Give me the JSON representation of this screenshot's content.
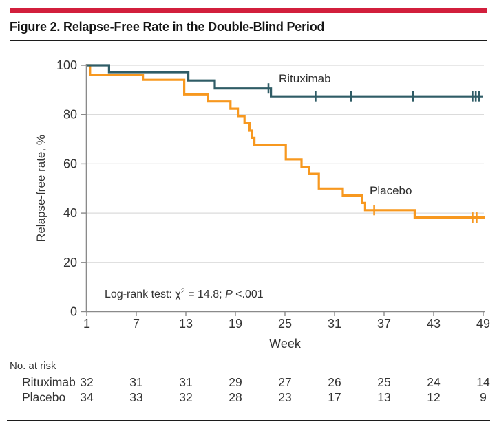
{
  "figure": {
    "title": "Figure 2. Relapse-Free Rate in the Double-Blind Period",
    "accent_color": "#D21F3C"
  },
  "chart_data": {
    "type": "line",
    "subtype": "kaplan-meier-step",
    "title": "",
    "xlabel": "Week",
    "ylabel": "Relapse-free rate, %",
    "xlim": [
      1,
      49
    ],
    "ylim": [
      0,
      100
    ],
    "x_ticks": [
      1,
      7,
      13,
      19,
      25,
      31,
      37,
      43,
      49
    ],
    "y_ticks": [
      0,
      20,
      40,
      60,
      80,
      100
    ],
    "grid": "horizontal-only",
    "legend_position": "inline-curve-labels",
    "annotation": {
      "prefix": "Log-rank test: χ",
      "sup": "2",
      "equals": " = 14.8; ",
      "p_label": "P",
      "p_value": " <.001"
    },
    "series": [
      {
        "name": "Placebo",
        "color": "#F7981F",
        "step_points": [
          [
            1,
            100
          ],
          [
            1.4,
            96.2
          ],
          [
            7.8,
            94.1
          ],
          [
            12.8,
            88.2
          ],
          [
            15.7,
            85.3
          ],
          [
            18.4,
            82.4
          ],
          [
            19.3,
            79.4
          ],
          [
            20.1,
            76.5
          ],
          [
            20.7,
            73.5
          ],
          [
            21.0,
            70.6
          ],
          [
            21.3,
            67.6
          ],
          [
            25.1,
            61.8
          ],
          [
            27.0,
            58.8
          ],
          [
            27.9,
            55.9
          ],
          [
            29.1,
            50.0
          ],
          [
            32.0,
            47.1
          ],
          [
            34.3,
            44.1
          ],
          [
            34.7,
            41.2
          ],
          [
            40.7,
            38.2
          ],
          [
            49.2,
            38.2
          ]
        ],
        "censor_marks": [
          [
            35.8,
            41.2
          ],
          [
            47.7,
            38.2
          ],
          [
            48.2,
            38.2
          ]
        ]
      },
      {
        "name": "Rituximab",
        "color": "#2F5C66",
        "step_points": [
          [
            1,
            100
          ],
          [
            3.7,
            97.2
          ],
          [
            13.3,
            93.8
          ],
          [
            16.5,
            90.6
          ],
          [
            23.3,
            87.4
          ],
          [
            49,
            87.4
          ]
        ],
        "censor_marks": [
          [
            23,
            90.6
          ],
          [
            28.7,
            87.4
          ],
          [
            33,
            87.4
          ],
          [
            40.5,
            87.4
          ],
          [
            47.7,
            87.4
          ],
          [
            48.1,
            87.4
          ],
          [
            48.5,
            87.4
          ]
        ]
      }
    ]
  },
  "risk_table": {
    "header": "No. at risk",
    "weeks": [
      1,
      7,
      13,
      19,
      25,
      31,
      37,
      43,
      49
    ],
    "rows": [
      {
        "label": "Rituximab",
        "counts": [
          32,
          31,
          31,
          29,
          27,
          26,
          25,
          24,
          14
        ]
      },
      {
        "label": "Placebo",
        "counts": [
          34,
          33,
          32,
          28,
          23,
          17,
          13,
          12,
          9
        ]
      }
    ]
  }
}
